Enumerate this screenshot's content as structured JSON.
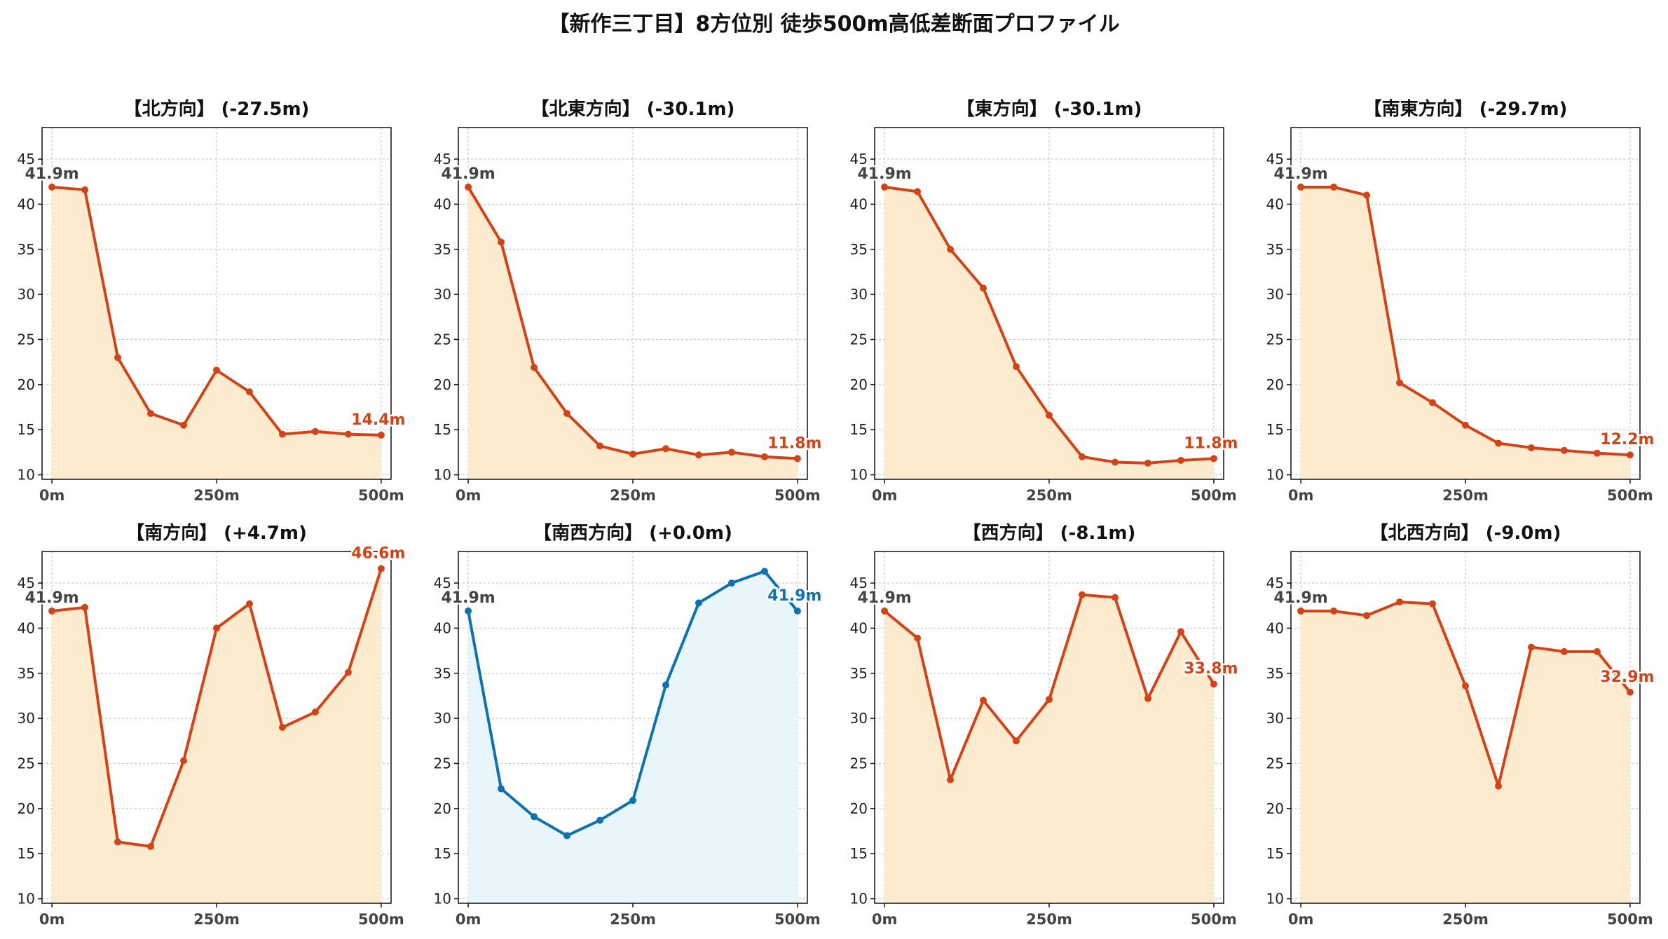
{
  "figure_title": "【新作三丁目】8方位別 徒歩500m高低差断面プロファイル",
  "chart_data": {
    "type": "area",
    "title": "【新作三丁目】8方位別 徒歩500m高低差断面プロファイル",
    "x": [
      0,
      50,
      100,
      150,
      200,
      250,
      300,
      350,
      400,
      450,
      500
    ],
    "x_ticks": [
      0,
      250,
      500
    ],
    "x_tick_labels": [
      "0m",
      "250m",
      "500m"
    ],
    "y_ticks": [
      10,
      15,
      20,
      25,
      30,
      35,
      40,
      45
    ],
    "xlim": [
      -15,
      515
    ],
    "ylim": [
      9.5,
      48.5
    ],
    "grid": true,
    "colors": {
      "line_default": "#d24417",
      "fill_default": "#fdebd0",
      "line_highlight": "#0f72b0",
      "fill_highlight": "#e8f5fb",
      "start_label": "#444444"
    },
    "panels": [
      {
        "title": "【北方向】 (-27.5m)",
        "start_label": "41.9m",
        "end_label": "14.4m",
        "highlight": false,
        "values": [
          41.9,
          41.6,
          23.0,
          16.8,
          15.5,
          21.6,
          19.2,
          14.5,
          14.8,
          14.5,
          14.4
        ]
      },
      {
        "title": "【北東方向】 (-30.1m)",
        "start_label": "41.9m",
        "end_label": "11.8m",
        "highlight": false,
        "values": [
          41.9,
          35.8,
          21.9,
          16.8,
          13.2,
          12.3,
          12.9,
          12.2,
          12.5,
          12.0,
          11.8
        ]
      },
      {
        "title": "【東方向】 (-30.1m)",
        "start_label": "41.9m",
        "end_label": "11.8m",
        "highlight": false,
        "values": [
          41.9,
          41.4,
          35.0,
          30.7,
          22.0,
          16.6,
          12.0,
          11.4,
          11.3,
          11.6,
          11.8
        ]
      },
      {
        "title": "【南東方向】 (-29.7m)",
        "start_label": "41.9m",
        "end_label": "12.2m",
        "highlight": false,
        "values": [
          41.9,
          41.9,
          41.0,
          20.2,
          18.0,
          15.5,
          13.5,
          13.0,
          12.7,
          12.4,
          12.2
        ]
      },
      {
        "title": "【南方向】 (+4.7m)",
        "start_label": "41.9m",
        "end_label": "46.6m",
        "highlight": false,
        "values": [
          41.9,
          42.3,
          16.3,
          15.8,
          25.3,
          40.0,
          42.7,
          29.0,
          30.7,
          35.1,
          46.6
        ]
      },
      {
        "title": "【南西方向】 (+0.0m)",
        "start_label": "41.9m",
        "end_label": "41.9m",
        "highlight": true,
        "values": [
          41.9,
          22.2,
          19.1,
          17.0,
          18.7,
          20.9,
          33.7,
          42.8,
          45.0,
          46.3,
          41.9
        ]
      },
      {
        "title": "【西方向】 (-8.1m)",
        "start_label": "41.9m",
        "end_label": "33.8m",
        "highlight": false,
        "values": [
          41.9,
          38.9,
          23.2,
          32.0,
          27.5,
          32.1,
          43.7,
          43.4,
          32.2,
          39.6,
          33.8
        ]
      },
      {
        "title": "【北西方向】 (-9.0m)",
        "start_label": "41.9m",
        "end_label": "32.9m",
        "highlight": false,
        "values": [
          41.9,
          41.9,
          41.4,
          42.9,
          42.7,
          33.6,
          22.5,
          37.9,
          37.4,
          37.4,
          32.9
        ]
      }
    ]
  }
}
